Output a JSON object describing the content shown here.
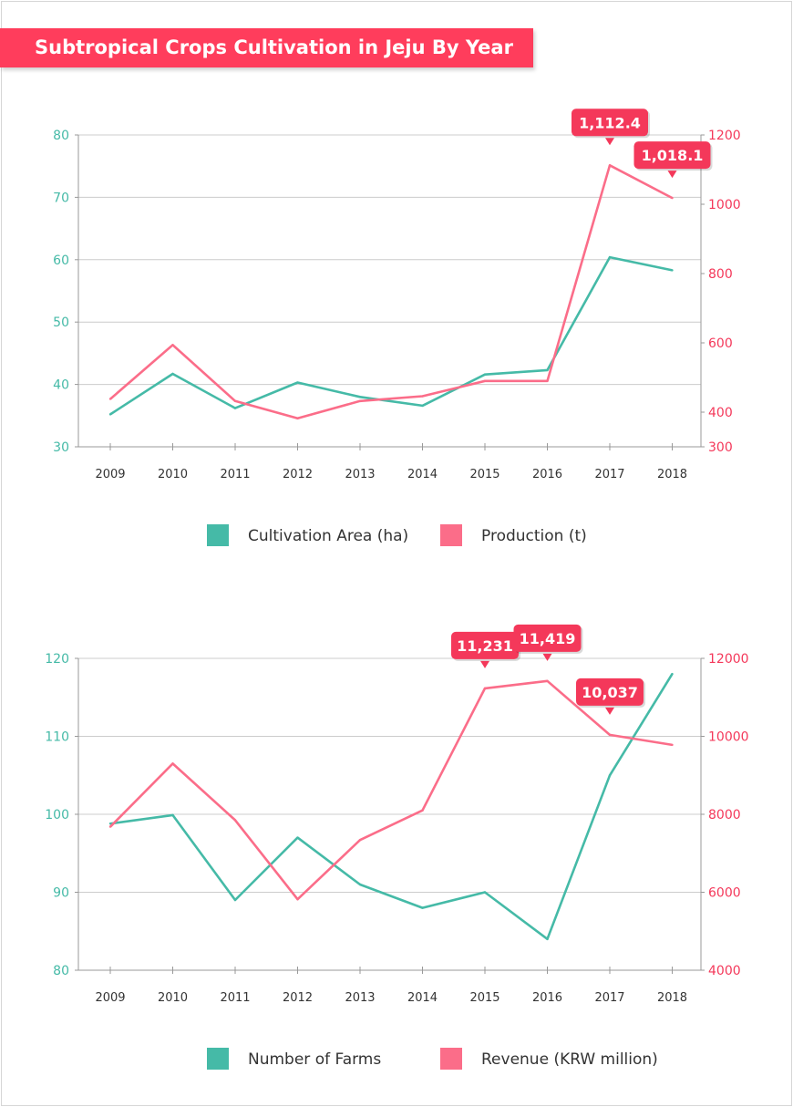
{
  "title": "Subtropical Crops Cultivation in Jeju By Year",
  "colors": {
    "teal": "#45baa7",
    "pink": "#fb6d89",
    "callout": "#f4385a",
    "axis": "#999999",
    "grid": "#cccccc"
  },
  "chart_data": [
    {
      "type": "line",
      "x": [
        "2009",
        "2010",
        "2011",
        "2012",
        "2013",
        "2014",
        "2015",
        "2016",
        "2017",
        "2018"
      ],
      "y_left": {
        "ticks": [
          30,
          40,
          50,
          60,
          70,
          80
        ],
        "lim": [
          30,
          80
        ]
      },
      "y_right": {
        "ticks": [
          300,
          400,
          600,
          800,
          1000,
          1200
        ],
        "lim": [
          300,
          1200
        ]
      },
      "series": [
        {
          "name": "Cultivation Area (ha)",
          "axis": "left",
          "color": "#45baa7",
          "values": [
            35.2,
            41.7,
            36.2,
            40.3,
            38.0,
            36.6,
            41.6,
            42.3,
            60.4,
            58.3
          ]
        },
        {
          "name": "Production (t)",
          "axis": "right",
          "color": "#fb6d89",
          "values": [
            438,
            594,
            432,
            382,
            432,
            446,
            490,
            490,
            1112.4,
            1018.1
          ]
        }
      ],
      "callouts": [
        {
          "text": "1,112.4",
          "index": 8
        },
        {
          "text": "1,018.1",
          "index": 9
        }
      ]
    },
    {
      "type": "line",
      "x": [
        "2009",
        "2010",
        "2011",
        "2012",
        "2013",
        "2014",
        "2015",
        "2016",
        "2017",
        "2018"
      ],
      "y_left": {
        "ticks": [
          80,
          90,
          100,
          110,
          120
        ],
        "lim": [
          80,
          120
        ]
      },
      "y_right": {
        "ticks": [
          4000,
          6000,
          8000,
          10000,
          12000
        ],
        "lim": [
          4000,
          12000
        ]
      },
      "series": [
        {
          "name": "Number of Farms",
          "axis": "left",
          "color": "#45baa7",
          "values": [
            98.8,
            99.9,
            89.0,
            97.0,
            91.0,
            88.0,
            90.0,
            84.0,
            105.0,
            118.0
          ]
        },
        {
          "name": "Revenue (KRW million)",
          "axis": "right",
          "color": "#fb6d89",
          "values": [
            7680,
            9300,
            7850,
            5820,
            7340,
            8100,
            11231,
            11419,
            10037,
            9780
          ]
        }
      ],
      "callouts": [
        {
          "text": "11,231",
          "index": 6
        },
        {
          "text": "11,419",
          "index": 7
        },
        {
          "text": "10,037",
          "index": 8
        }
      ]
    }
  ]
}
